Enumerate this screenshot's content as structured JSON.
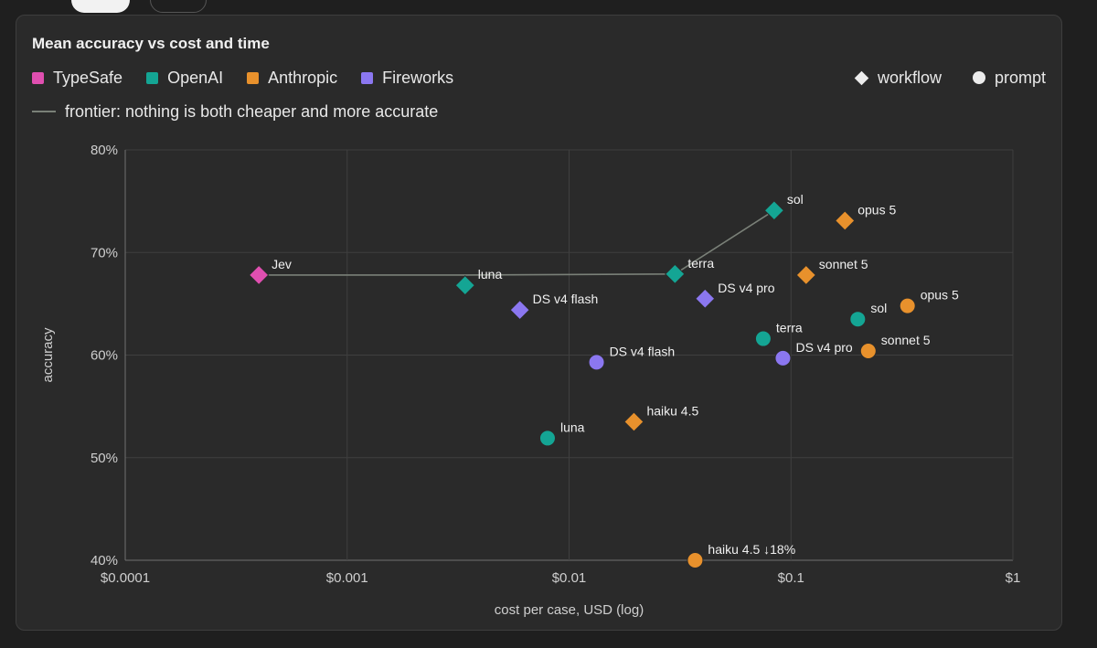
{
  "tabs": [
    {
      "state": "active"
    },
    {
      "state": "inactive"
    }
  ],
  "legend": {
    "providers": [
      {
        "label": "TypeSafe",
        "color": "#e04fb0"
      },
      {
        "label": "OpenAI",
        "color": "#14a594"
      },
      {
        "label": "Anthropic",
        "color": "#e8912c"
      },
      {
        "label": "Fireworks",
        "color": "#8b77f0"
      }
    ],
    "shapes": [
      {
        "label": "workflow",
        "shape": "diamond"
      },
      {
        "label": "prompt",
        "shape": "circle"
      }
    ],
    "frontier_label": "frontier: nothing is both cheaper and more accurate"
  },
  "chart_data": {
    "type": "scatter",
    "title": "Mean accuracy vs cost and time",
    "xlabel": "cost per case, USD (log)",
    "ylabel": "accuracy",
    "x_scale": "log",
    "xlim": [
      0.0001,
      1
    ],
    "ylim": [
      40,
      80
    ],
    "x_ticks": [
      {
        "value": 0.0001,
        "label": "$0.0001"
      },
      {
        "value": 0.001,
        "label": "$0.001"
      },
      {
        "value": 0.01,
        "label": "$0.01"
      },
      {
        "value": 0.1,
        "label": "$0.1"
      },
      {
        "value": 1,
        "label": "$1"
      }
    ],
    "y_ticks": [
      {
        "value": 40,
        "label": "40%"
      },
      {
        "value": 50,
        "label": "50%"
      },
      {
        "value": 60,
        "label": "60%"
      },
      {
        "value": 70,
        "label": "70%"
      },
      {
        "value": 80,
        "label": "80%"
      }
    ],
    "grid": true,
    "points": [
      {
        "label": "Jev",
        "provider": "TypeSafe",
        "shape": "diamond",
        "x": 0.0004,
        "y": 67.8
      },
      {
        "label": "luna",
        "provider": "OpenAI",
        "shape": "diamond",
        "x": 0.0034,
        "y": 66.8
      },
      {
        "label": "DS v4 flash",
        "provider": "Fireworks",
        "shape": "diamond",
        "x": 0.006,
        "y": 64.4
      },
      {
        "label": "terra",
        "provider": "OpenAI",
        "shape": "diamond",
        "x": 0.03,
        "y": 67.9
      },
      {
        "label": "DS v4 pro",
        "provider": "Fireworks",
        "shape": "diamond",
        "x": 0.041,
        "y": 65.5
      },
      {
        "label": "sol",
        "provider": "OpenAI",
        "shape": "diamond",
        "x": 0.084,
        "y": 74.1
      },
      {
        "label": "opus 5",
        "provider": "Anthropic",
        "shape": "diamond",
        "x": 0.175,
        "y": 73.1
      },
      {
        "label": "sonnet 5",
        "provider": "Anthropic",
        "shape": "diamond",
        "x": 0.117,
        "y": 67.8
      },
      {
        "label": "DS v4 flash",
        "provider": "Fireworks",
        "shape": "circle",
        "x": 0.0133,
        "y": 59.3
      },
      {
        "label": "luna",
        "provider": "OpenAI",
        "shape": "circle",
        "x": 0.008,
        "y": 51.9
      },
      {
        "label": "haiku 4.5",
        "provider": "Anthropic",
        "shape": "diamond",
        "x": 0.0196,
        "y": 53.5
      },
      {
        "label": "terra",
        "provider": "OpenAI",
        "shape": "circle",
        "x": 0.075,
        "y": 61.6
      },
      {
        "label": "DS v4 pro",
        "provider": "Fireworks",
        "shape": "circle",
        "x": 0.092,
        "y": 59.7
      },
      {
        "label": "sol",
        "provider": "OpenAI",
        "shape": "circle",
        "x": 0.2,
        "y": 63.5
      },
      {
        "label": "sonnet 5",
        "provider": "Anthropic",
        "shape": "circle",
        "x": 0.223,
        "y": 60.4
      },
      {
        "label": "opus 5",
        "provider": "Anthropic",
        "shape": "circle",
        "x": 0.335,
        "y": 64.8
      },
      {
        "label": "haiku 4.5 ↓18%",
        "provider": "Anthropic",
        "shape": "circle",
        "x": 0.037,
        "y": 40
      }
    ],
    "frontier": [
      {
        "x": 0.0004,
        "y": 67.8
      },
      {
        "x": 0.0034,
        "y": 67.8
      },
      {
        "x": 0.03,
        "y": 67.9
      },
      {
        "x": 0.084,
        "y": 74.1
      }
    ]
  }
}
